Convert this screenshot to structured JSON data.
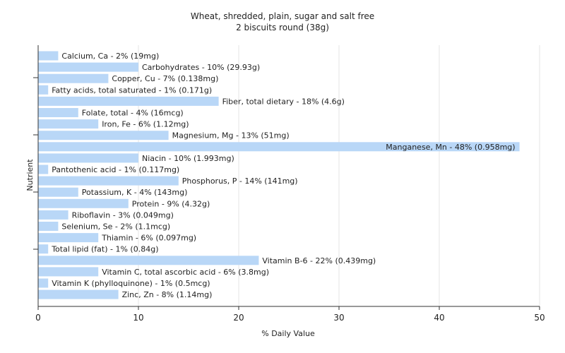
{
  "chart_data": {
    "type": "bar",
    "orientation": "horizontal",
    "title": "Wheat, shredded, plain, sugar and salt free",
    "subtitle": "2 biscuits round (38g)",
    "xlabel": "% Daily Value",
    "ylabel": "Nutrient",
    "xlim": [
      0,
      50
    ],
    "xticks": [
      "0",
      "10",
      "20",
      "30",
      "40",
      "50"
    ],
    "grid": true,
    "bar_color": "#b9d7f7",
    "categories": [
      "Calcium, Ca",
      "Carbohydrates",
      "Copper, Cu",
      "Fatty acids, total saturated",
      "Fiber, total dietary",
      "Folate, total",
      "Iron, Fe",
      "Magnesium, Mg",
      "Manganese, Mn",
      "Niacin",
      "Pantothenic acid",
      "Phosphorus, P",
      "Potassium, K",
      "Protein",
      "Riboflavin",
      "Selenium, Se",
      "Thiamin",
      "Total lipid (fat)",
      "Vitamin B-6",
      "Vitamin C, total ascorbic acid",
      "Vitamin K (phylloquinone)",
      "Zinc, Zn"
    ],
    "values": [
      2,
      10,
      7,
      1,
      18,
      4,
      6,
      13,
      48,
      10,
      1,
      14,
      4,
      9,
      3,
      2,
      6,
      1,
      22,
      6,
      1,
      8
    ],
    "labels": [
      "Calcium, Ca - 2% (19mg)",
      "Carbohydrates - 10% (29.93g)",
      "Copper, Cu - 7% (0.138mg)",
      "Fatty acids, total saturated - 1% (0.171g)",
      "Fiber, total dietary - 18% (4.6g)",
      "Folate, total - 4% (16mcg)",
      "Iron, Fe - 6% (1.12mg)",
      "Magnesium, Mg - 13% (51mg)",
      "Manganese, Mn - 48% (0.958mg)",
      "Niacin - 10% (1.993mg)",
      "Pantothenic acid - 1% (0.117mg)",
      "Phosphorus, P - 14% (141mg)",
      "Potassium, K - 4% (143mg)",
      "Protein - 9% (4.32g)",
      "Riboflavin - 3% (0.049mg)",
      "Selenium, Se - 2% (1.1mcg)",
      "Thiamin - 6% (0.097mg)",
      "Total lipid (fat) - 1% (0.84g)",
      "Vitamin B-6 - 22% (0.439mg)",
      "Vitamin C, total ascorbic acid - 6% (3.8mg)",
      "Vitamin K (phylloquinone) - 1% (0.5mcg)",
      "Zinc, Zn - 8% (1.14mg)"
    ]
  }
}
